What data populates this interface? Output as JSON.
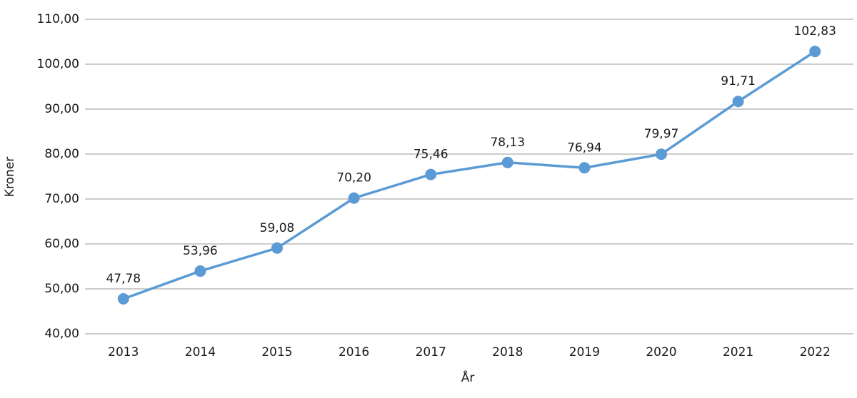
{
  "chart_data": {
    "type": "line",
    "y_label": "Kroner",
    "x_label": "År",
    "categories": [
      "2013",
      "2014",
      "2015",
      "2016",
      "2017",
      "2018",
      "2019",
      "2020",
      "2021",
      "2022"
    ],
    "values": [
      47.78,
      53.96,
      59.08,
      70.2,
      75.46,
      78.13,
      76.94,
      79.97,
      91.71,
      102.83
    ],
    "value_labels": [
      "47,78",
      "53,96",
      "59,08",
      "70,20",
      "75,46",
      "78,13",
      "76,94",
      "79,97",
      "91,71",
      "102,83"
    ],
    "color": "#5b9bd5",
    "ylim": [
      40,
      110
    ],
    "yticks": [
      {
        "value": 40,
        "label": "40,00"
      },
      {
        "value": 50,
        "label": "50,00"
      },
      {
        "value": 60,
        "label": "60,00"
      },
      {
        "value": 70,
        "label": "70,00"
      },
      {
        "value": 80,
        "label": "80,00"
      },
      {
        "value": 90,
        "label": "90,00"
      },
      {
        "value": 100,
        "label": "100,00"
      },
      {
        "value": 110,
        "label": "110,00"
      }
    ],
    "grid": true
  }
}
